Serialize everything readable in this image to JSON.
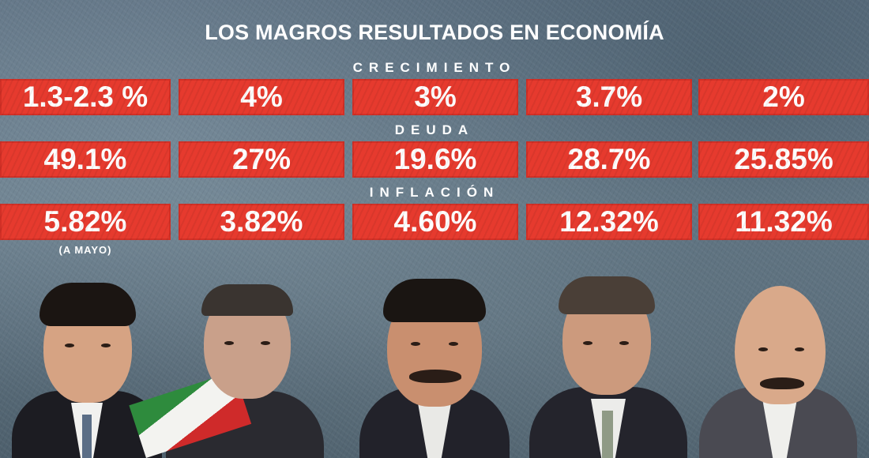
{
  "title": "LOS MAGROS RESULTADOS EN ECONOMÍA",
  "sections": [
    {
      "label": "CRECIMIENTO",
      "values": [
        "1.3-2.3 %",
        "4%",
        "3%",
        "3.7%",
        "2%"
      ]
    },
    {
      "label": "DEUDA",
      "values": [
        "49.1%",
        "27%",
        "19.6%",
        "28.7%",
        "25.85%"
      ]
    },
    {
      "label": "INFLACIÓN",
      "values": [
        "5.82%",
        "3.82%",
        "4.60%",
        "12.32%",
        "11.32%"
      ]
    }
  ],
  "note": "(A MAYO)",
  "colors": {
    "cell_red": "#e63a2e",
    "text": "#ffffff",
    "background": "#5f7283"
  }
}
